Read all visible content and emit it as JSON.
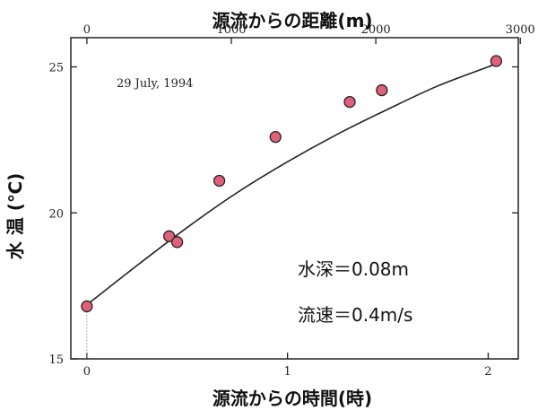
{
  "chart_data": {
    "type": "scatter",
    "title": "",
    "xlabel": "源流からの時間(時)",
    "x2label": "源流からの距離(m)",
    "ylabel": "水 温 (℃)",
    "xlim": [
      -0.08,
      2.15
    ],
    "ylim": [
      15,
      26
    ],
    "x_ticks": [
      0,
      1,
      2
    ],
    "x_tick_labels": [
      "0",
      "1",
      "2"
    ],
    "x2_ticks": [
      0,
      1000,
      2000,
      3000
    ],
    "x2_tick_labels": [
      "0",
      "1000",
      "2000",
      "3000"
    ],
    "x2_per_x": 1388.9,
    "y_ticks": [
      15,
      20,
      25
    ],
    "y_tick_labels": [
      "15",
      "20",
      "25"
    ],
    "annotation": "29 July, 1994",
    "params": [
      "水深＝0.08m",
      "流速＝0.4m/s"
    ],
    "points": [
      {
        "x": 0.0,
        "y": 16.8
      },
      {
        "x": 0.41,
        "y": 19.2
      },
      {
        "x": 0.45,
        "y": 19.0
      },
      {
        "x": 0.66,
        "y": 21.1
      },
      {
        "x": 0.94,
        "y": 22.6
      },
      {
        "x": 1.31,
        "y": 23.8
      },
      {
        "x": 1.47,
        "y": 24.2
      },
      {
        "x": 2.04,
        "y": 25.2
      }
    ],
    "fit_curve": [
      {
        "x": 0.0,
        "y": 16.85
      },
      {
        "x": 0.25,
        "y": 18.2
      },
      {
        "x": 0.5,
        "y": 19.5
      },
      {
        "x": 0.75,
        "y": 20.7
      },
      {
        "x": 1.0,
        "y": 21.75
      },
      {
        "x": 1.25,
        "y": 22.7
      },
      {
        "x": 1.5,
        "y": 23.55
      },
      {
        "x": 1.75,
        "y": 24.35
      },
      {
        "x": 2.0,
        "y": 25.0
      },
      {
        "x": 2.04,
        "y": 25.1
      }
    ],
    "marker_color": "#e0607a",
    "marker_stroke": "#222222",
    "line_color": "#222222",
    "grid": false
  }
}
